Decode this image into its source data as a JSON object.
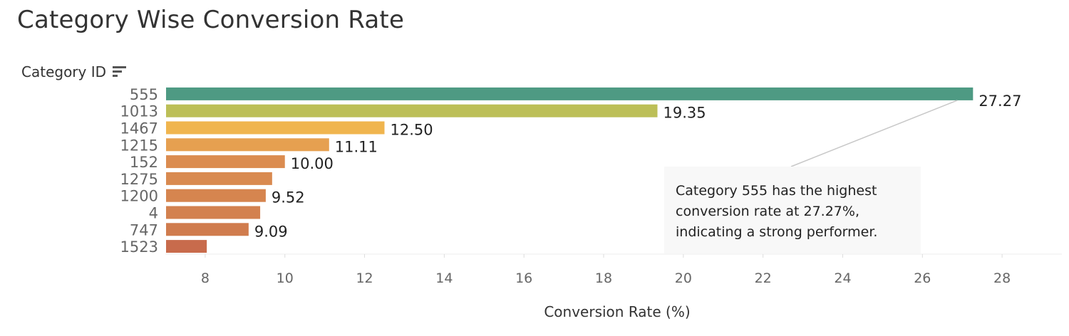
{
  "title": "Category Wise Conversion Rate",
  "y_header": "Category ID",
  "sort_icon": "sort-descending-icon",
  "annotation": {
    "lines": [
      "Category 555 has the highest",
      "conversion rate at 27.27%,",
      "indicating a strong performer."
    ],
    "target_category": "555"
  },
  "chart_data": {
    "type": "bar",
    "orientation": "horizontal",
    "title": "Category Wise Conversion Rate",
    "ylabel": "Category ID",
    "xlabel": "Conversion Rate (%)",
    "categories": [
      "555",
      "1013",
      "1467",
      "1215",
      "152",
      "1275",
      "1200",
      "4",
      "747",
      "1523"
    ],
    "values": [
      27.27,
      19.35,
      12.5,
      11.11,
      10.0,
      9.68,
      9.52,
      9.38,
      9.09,
      8.04
    ],
    "data_labels": [
      "27.27",
      "19.35",
      "12.50",
      "11.11",
      "10.00",
      "",
      "9.52",
      "",
      "9.09",
      ""
    ],
    "colors": [
      "#4e9a83",
      "#bcbf57",
      "#f0b54e",
      "#e6a050",
      "#db8c50",
      "#d98a50",
      "#d6854f",
      "#d3814f",
      "#d07c4e",
      "#c86b4c"
    ],
    "xlim": [
      7,
      29.5
    ],
    "xticks": [
      8,
      10,
      12,
      14,
      16,
      18,
      20,
      22,
      24,
      26,
      28
    ],
    "grid": false,
    "legend": "none"
  }
}
